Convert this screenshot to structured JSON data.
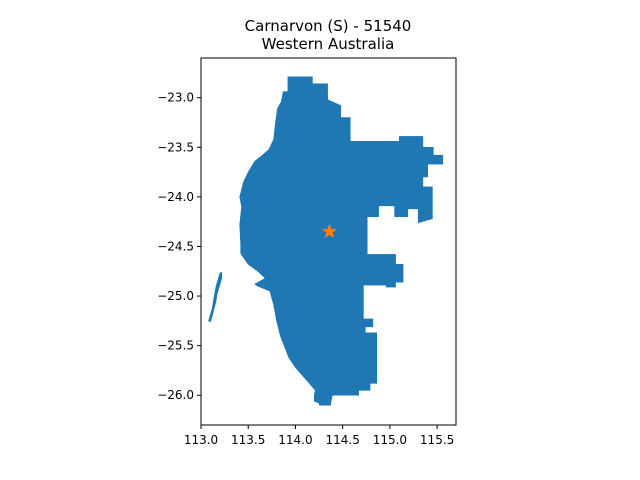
{
  "title_line1": "Carnarvon (S) - 51540",
  "title_line2": "Western Australia",
  "colors": {
    "region": "#1f77b4",
    "marker": "#ff7f0e",
    "axes": "#000000"
  },
  "chart_data": {
    "type": "map",
    "xlim": [
      113.0,
      115.7
    ],
    "ylim": [
      -26.3,
      -22.6
    ],
    "x_ticks": [
      113.0,
      113.5,
      114.0,
      114.5,
      115.0,
      115.5
    ],
    "x_tick_labels": [
      "113.0",
      "113.5",
      "114.0",
      "114.5",
      "115.0",
      "115.5"
    ],
    "y_ticks": [
      -23.0,
      -23.5,
      -24.0,
      -24.5,
      -25.0,
      -25.5,
      -26.0
    ],
    "y_tick_labels": [
      "−23.0",
      "−23.5",
      "−24.0",
      "−24.5",
      "−25.0",
      "−25.5",
      "−26.0"
    ],
    "marker": {
      "symbol": "star",
      "lon": 114.36,
      "lat": -24.35
    },
    "region_polygon": [
      [
        113.92,
        -22.79
      ],
      [
        114.18,
        -22.79
      ],
      [
        114.18,
        -22.86
      ],
      [
        114.34,
        -22.86
      ],
      [
        114.34,
        -23.02
      ],
      [
        114.48,
        -23.08
      ],
      [
        114.48,
        -23.2
      ],
      [
        114.58,
        -23.2
      ],
      [
        114.58,
        -23.44
      ],
      [
        115.1,
        -23.44
      ],
      [
        115.1,
        -23.39
      ],
      [
        115.35,
        -23.39
      ],
      [
        115.35,
        -23.5
      ],
      [
        115.46,
        -23.5
      ],
      [
        115.46,
        -23.58
      ],
      [
        115.56,
        -23.58
      ],
      [
        115.56,
        -23.67
      ],
      [
        115.4,
        -23.67
      ],
      [
        115.4,
        -23.8
      ],
      [
        115.35,
        -23.8
      ],
      [
        115.35,
        -23.9
      ],
      [
        115.45,
        -23.9
      ],
      [
        115.45,
        -24.22
      ],
      [
        115.3,
        -24.26
      ],
      [
        115.3,
        -24.12
      ],
      [
        115.19,
        -24.12
      ],
      [
        115.19,
        -24.2
      ],
      [
        115.05,
        -24.2
      ],
      [
        115.05,
        -24.09
      ],
      [
        114.88,
        -24.09
      ],
      [
        114.88,
        -24.2
      ],
      [
        114.76,
        -24.2
      ],
      [
        114.76,
        -24.58
      ],
      [
        115.06,
        -24.58
      ],
      [
        115.06,
        -24.68
      ],
      [
        115.14,
        -24.68
      ],
      [
        115.14,
        -24.86
      ],
      [
        115.06,
        -24.86
      ],
      [
        115.06,
        -24.91
      ],
      [
        114.96,
        -24.91
      ],
      [
        114.96,
        -24.89
      ],
      [
        114.72,
        -24.89
      ],
      [
        114.72,
        -25.1
      ],
      [
        114.72,
        -25.23
      ],
      [
        114.82,
        -25.23
      ],
      [
        114.82,
        -25.31
      ],
      [
        114.74,
        -25.31
      ],
      [
        114.74,
        -25.37
      ],
      [
        114.86,
        -25.37
      ],
      [
        114.86,
        -25.88
      ],
      [
        114.79,
        -25.88
      ],
      [
        114.79,
        -25.95
      ],
      [
        114.67,
        -25.95
      ],
      [
        114.67,
        -26.0
      ],
      [
        114.39,
        -26.0
      ],
      [
        114.37,
        -26.1
      ],
      [
        114.25,
        -26.1
      ],
      [
        114.25,
        -26.08
      ],
      [
        114.2,
        -26.06
      ],
      [
        114.2,
        -26.0
      ],
      [
        114.21,
        -25.95
      ],
      [
        114.12,
        -25.85
      ],
      [
        114.0,
        -25.72
      ],
      [
        113.93,
        -25.62
      ],
      [
        113.88,
        -25.5
      ],
      [
        113.84,
        -25.4
      ],
      [
        113.8,
        -25.25
      ],
      [
        113.77,
        -25.09
      ],
      [
        113.73,
        -24.95
      ],
      [
        113.6,
        -24.9
      ],
      [
        113.57,
        -24.88
      ],
      [
        113.68,
        -24.82
      ],
      [
        113.6,
        -24.75
      ],
      [
        113.5,
        -24.68
      ],
      [
        113.42,
        -24.57
      ],
      [
        113.42,
        -24.48
      ],
      [
        113.41,
        -24.28
      ],
      [
        113.43,
        -24.1
      ],
      [
        113.41,
        -24.0
      ],
      [
        113.45,
        -23.85
      ],
      [
        113.5,
        -23.75
      ],
      [
        113.57,
        -23.64
      ],
      [
        113.65,
        -23.58
      ],
      [
        113.72,
        -23.52
      ],
      [
        113.77,
        -23.42
      ],
      [
        113.79,
        -23.24
      ],
      [
        113.81,
        -23.11
      ],
      [
        113.85,
        -23.04
      ],
      [
        113.87,
        -22.94
      ],
      [
        113.92,
        -22.94
      ]
    ],
    "island_polygon": [
      [
        113.2,
        -24.77
      ],
      [
        113.22,
        -24.76
      ],
      [
        113.22,
        -24.82
      ],
      [
        113.17,
        -24.98
      ],
      [
        113.16,
        -25.05
      ],
      [
        113.14,
        -25.12
      ],
      [
        113.12,
        -25.2
      ],
      [
        113.1,
        -25.26
      ],
      [
        113.08,
        -25.25
      ],
      [
        113.12,
        -25.12
      ],
      [
        113.14,
        -25.0
      ],
      [
        113.16,
        -24.9
      ]
    ]
  }
}
